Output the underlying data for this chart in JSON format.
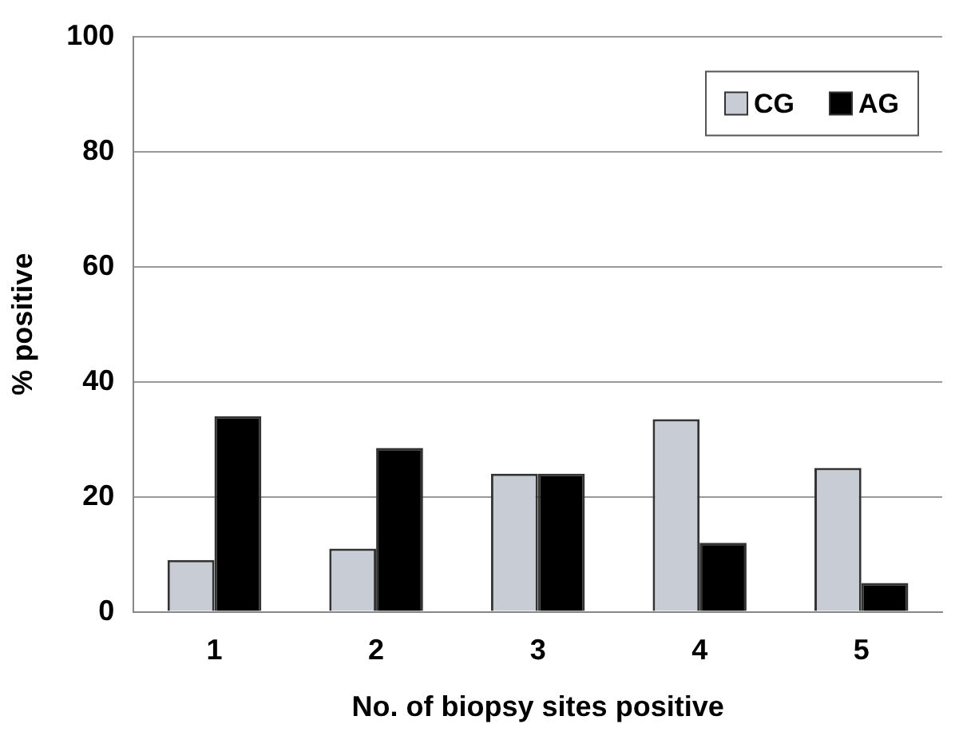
{
  "chart_data": {
    "type": "bar",
    "xlabel": "No. of biopsy sites positive",
    "ylabel": "% positive",
    "categories": [
      "1",
      "2",
      "3",
      "4",
      "5"
    ],
    "series": [
      {
        "name": "CG",
        "color": "#c8ccd4",
        "values": [
          9,
          11,
          24,
          33.5,
          25
        ]
      },
      {
        "name": "AG",
        "color": "#000000",
        "values": [
          34,
          28.5,
          24,
          12,
          5
        ]
      }
    ],
    "ylim": [
      0,
      100
    ],
    "yticks": [
      0,
      20,
      40,
      60,
      80,
      100
    ],
    "grid": "y",
    "legend": "top right"
  }
}
